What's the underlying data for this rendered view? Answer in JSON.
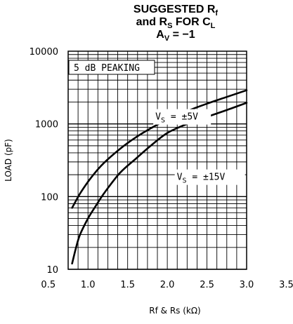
{
  "chart_data": {
    "type": "line",
    "title_lines": [
      {
        "main": "SUGGESTED R",
        "sub": "f"
      },
      {
        "pre": "and R",
        "sub": "S",
        "mid": " FOR C",
        "sub2": "L"
      },
      {
        "main": "A",
        "sub": "V",
        "post": " = −1"
      }
    ],
    "xlabel": "Rf & Rs (kΩ)",
    "ylabel": "LOAD (pF)",
    "xlim": [
      0.5,
      3.5
    ],
    "ylim": [
      10,
      10000
    ],
    "yscale": "log",
    "x_ticks": [
      "0.5",
      "1.0",
      "1.5",
      "2.0",
      "2.5",
      "3.0",
      "3.5"
    ],
    "y_ticks": [
      "10",
      "100",
      "1000",
      "10000"
    ],
    "grid": true,
    "note": "5 dB PEAKING",
    "series": [
      {
        "name_parts": {
          "pre": "V",
          "sub": "S",
          "post": " = ±5V"
        },
        "x": [
          0.8,
          0.9,
          1.0,
          1.1,
          1.2,
          1.4,
          1.6,
          1.8,
          2.0,
          2.25,
          2.5,
          2.75,
          3.0
        ],
        "y": [
          70,
          110,
          160,
          220,
          290,
          450,
          650,
          880,
          1150,
          1500,
          1900,
          2350,
          2900
        ]
      },
      {
        "name_parts": {
          "pre": "V",
          "sub": "S",
          "post": " = ±15V"
        },
        "x": [
          0.8,
          0.85,
          0.9,
          1.0,
          1.1,
          1.2,
          1.4,
          1.6,
          1.8,
          2.0,
          2.25,
          2.5,
          2.75,
          3.0
        ],
        "y": [
          12,
          20,
          30,
          50,
          75,
          110,
          210,
          330,
          510,
          750,
          1000,
          1250,
          1550,
          1950
        ]
      }
    ]
  }
}
